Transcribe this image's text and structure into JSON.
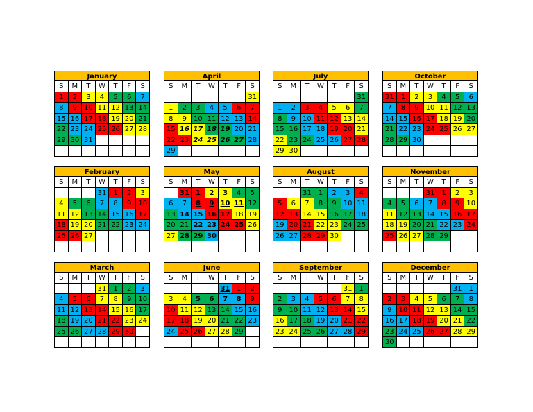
{
  "weekdays": [
    "S",
    "M",
    "T",
    "W",
    "T",
    "F",
    "S"
  ],
  "colors": {
    "R": "#ff0000",
    "Y": "#ffff00",
    "G": "#00b050",
    "B": "#00b0f0",
    ".": "#ffffff"
  },
  "title_color": "#ffc000",
  "months": [
    {
      "name": "January",
      "days": [
        [
          1,
          2,
          3,
          4,
          5,
          6,
          7
        ],
        [
          8,
          9,
          10,
          11,
          12,
          13,
          14
        ],
        [
          15,
          16,
          17,
          18,
          19,
          20,
          21
        ],
        [
          22,
          23,
          24,
          25,
          26,
          27,
          28
        ],
        [
          29,
          30,
          31,
          null,
          null,
          null,
          null
        ],
        [
          null,
          null,
          null,
          null,
          null,
          null,
          null
        ]
      ],
      "fills": [
        "RRYYGGB",
        "BRRYYGG",
        "BBRRYYG",
        "GBBRRYY",
        "GGB....",
        "......."
      ]
    },
    {
      "name": "February",
      "days": [
        [
          null,
          null,
          null,
          31,
          1,
          2,
          3
        ],
        [
          4,
          5,
          6,
          7,
          8,
          9,
          10
        ],
        [
          11,
          12,
          13,
          14,
          15,
          16,
          17
        ],
        [
          18,
          19,
          20,
          21,
          22,
          23,
          24
        ],
        [
          25,
          26,
          27,
          null,
          null,
          null,
          null
        ],
        [
          null,
          null,
          null,
          null,
          null,
          null,
          null
        ]
      ],
      "fills": [
        "...BRRY",
        "YGGBBRR",
        "YYGGBBR",
        "RYYGGBB",
        "RRY....",
        "......."
      ]
    },
    {
      "name": "March",
      "days": [
        [
          null,
          null,
          null,
          31,
          1,
          2,
          3
        ],
        [
          4,
          5,
          6,
          7,
          8,
          9,
          10
        ],
        [
          11,
          12,
          13,
          14,
          15,
          16,
          17
        ],
        [
          18,
          19,
          20,
          21,
          22,
          23,
          24
        ],
        [
          25,
          26,
          27,
          28,
          29,
          30,
          null
        ],
        [
          null,
          null,
          null,
          null,
          null,
          null,
          null
        ]
      ],
      "fills": [
        "...YGGB",
        "BRRYYGG",
        "BBRRYYG",
        "GBBRRYY",
        "GGBBRR.",
        "......."
      ]
    },
    {
      "name": "April",
      "days": [
        [
          null,
          null,
          null,
          null,
          null,
          null,
          31
        ],
        [
          1,
          2,
          3,
          4,
          5,
          6,
          7
        ],
        [
          8,
          9,
          10,
          11,
          12,
          13,
          14
        ],
        [
          15,
          16,
          17,
          18,
          19,
          20,
          21
        ],
        [
          22,
          23,
          24,
          25,
          26,
          27,
          28
        ],
        [
          29,
          null,
          null,
          null,
          null,
          null,
          null
        ]
      ],
      "fills": [
        "......Y",
        "YGGBBRR",
        "YYGGBBR",
        "RYYGGBB",
        "RRYYGGB",
        "B......"
      ],
      "bold": [
        16,
        17,
        18,
        19,
        24,
        25,
        26,
        27
      ],
      "italic": [
        16,
        17,
        18,
        19,
        24,
        25,
        26,
        27
      ]
    },
    {
      "name": "May",
      "days": [
        [
          null,
          31,
          1,
          2,
          3,
          4,
          5
        ],
        [
          6,
          7,
          8,
          9,
          10,
          11,
          12
        ],
        [
          13,
          14,
          15,
          16,
          17,
          18,
          19
        ],
        [
          20,
          21,
          22,
          23,
          24,
          25,
          26
        ],
        [
          27,
          28,
          29,
          30,
          null,
          null,
          null
        ],
        [
          null,
          null,
          null,
          null,
          null,
          null,
          null
        ]
      ],
      "fills": [
        ".RRYYGG",
        "BBRRYYG",
        "GBBRRYY",
        "GGBBRRY",
        "YGGB...",
        "......."
      ],
      "bold": [
        31,
        1,
        2,
        3,
        8,
        9,
        10,
        11,
        14,
        15,
        16,
        17,
        22,
        23,
        24,
        25,
        28,
        29,
        30
      ],
      "underline": [
        31,
        1,
        2,
        3,
        8,
        9,
        10,
        11,
        28,
        29,
        30
      ]
    },
    {
      "name": "June",
      "days": [
        [
          null,
          null,
          null,
          null,
          31,
          1,
          2
        ],
        [
          3,
          4,
          5,
          6,
          7,
          8,
          9
        ],
        [
          10,
          11,
          12,
          13,
          14,
          15,
          16
        ],
        [
          17,
          18,
          19,
          20,
          21,
          22,
          23
        ],
        [
          24,
          25,
          26,
          27,
          28,
          29,
          null
        ],
        [
          null,
          null,
          null,
          null,
          null,
          null,
          null
        ]
      ],
      "fills": [
        "....BRR",
        "YYGGBBR",
        "RYYGGBB",
        "RRYYGGB",
        "BRRYYG.",
        "......."
      ],
      "bold": [
        31,
        5,
        6,
        7,
        8
      ],
      "underline": [
        31,
        5,
        6,
        7,
        8
      ]
    },
    {
      "name": "July",
      "days": [
        [
          null,
          null,
          null,
          null,
          null,
          null,
          31
        ],
        [
          1,
          2,
          3,
          4,
          5,
          6,
          7
        ],
        [
          8,
          9,
          10,
          11,
          12,
          13,
          14
        ],
        [
          15,
          16,
          17,
          18,
          19,
          20,
          21
        ],
        [
          22,
          23,
          24,
          25,
          26,
          27,
          28
        ],
        [
          29,
          30,
          null,
          null,
          null,
          null,
          null
        ]
      ],
      "fills": [
        "......G",
        "BBRRYYG",
        "GBBRRYY",
        "GGBBRRY",
        "YGGBBRR",
        "YY....."
      ]
    },
    {
      "name": "August",
      "days": [
        [
          null,
          null,
          31,
          1,
          2,
          3,
          4
        ],
        [
          5,
          6,
          7,
          8,
          9,
          10,
          11
        ],
        [
          12,
          13,
          14,
          15,
          16,
          17,
          18
        ],
        [
          19,
          20,
          21,
          22,
          23,
          24,
          25
        ],
        [
          26,
          27,
          28,
          29,
          30,
          null,
          null
        ],
        [
          null,
          null,
          null,
          null,
          null,
          null,
          null
        ]
      ],
      "fills": [
        "..GGBBR",
        "RYYGGBB",
        "RRYYGGB",
        "BRRYYGG",
        "BBRRY..",
        "......."
      ]
    },
    {
      "name": "September",
      "days": [
        [
          null,
          null,
          null,
          null,
          null,
          31,
          1
        ],
        [
          2,
          3,
          4,
          5,
          6,
          7,
          8
        ],
        [
          9,
          10,
          11,
          12,
          13,
          14,
          15
        ],
        [
          16,
          17,
          18,
          19,
          20,
          21,
          22
        ],
        [
          23,
          24,
          25,
          26,
          27,
          28,
          29
        ],
        [
          null,
          null,
          null,
          null,
          null,
          null,
          null
        ]
      ],
      "fills": [
        ".....YG",
        "GBBRRYY",
        "GGBBRRY",
        "YGGBBRR",
        "YYGGBBR",
        "......."
      ]
    },
    {
      "name": "October",
      "days": [
        [
          31,
          1,
          2,
          3,
          4,
          5,
          6
        ],
        [
          7,
          8,
          9,
          10,
          11,
          12,
          13
        ],
        [
          14,
          15,
          16,
          17,
          18,
          19,
          20
        ],
        [
          21,
          22,
          23,
          24,
          25,
          26,
          27
        ],
        [
          28,
          29,
          30,
          null,
          null,
          null,
          null
        ],
        [
          null,
          null,
          null,
          null,
          null,
          null,
          null
        ]
      ],
      "fills": [
        "RRYYGGB",
        "BRRYYGG",
        "BBRRYYG",
        "GBBRRYY",
        "GGB....",
        "......."
      ]
    },
    {
      "name": "November",
      "days": [
        [
          null,
          null,
          null,
          31,
          1,
          2,
          3
        ],
        [
          4,
          5,
          6,
          7,
          8,
          9,
          10
        ],
        [
          11,
          12,
          13,
          14,
          15,
          16,
          17
        ],
        [
          18,
          19,
          20,
          21,
          22,
          23,
          24
        ],
        [
          25,
          26,
          27,
          28,
          29,
          null,
          null
        ],
        [
          null,
          null,
          null,
          null,
          null,
          null,
          null
        ]
      ],
      "fills": [
        "...RRYY",
        "GGBBRRY",
        "YGGBBRR",
        "YYGGBBR",
        "RYYGG..",
        "......."
      ]
    },
    {
      "name": "December",
      "days": [
        [
          null,
          null,
          null,
          null,
          null,
          31,
          1
        ],
        [
          2,
          3,
          4,
          5,
          6,
          7,
          8
        ],
        [
          9,
          10,
          11,
          12,
          13,
          14,
          15
        ],
        [
          16,
          17,
          18,
          19,
          20,
          21,
          22
        ],
        [
          23,
          24,
          25,
          26,
          27,
          28,
          29
        ],
        [
          30,
          null,
          null,
          null,
          null,
          null,
          null
        ]
      ],
      "fills": [
        ".....BB",
        "RRYYGGB",
        "BRRYYGG",
        "BBRRYYG",
        "GBBRRYY",
        "G......"
      ]
    }
  ]
}
